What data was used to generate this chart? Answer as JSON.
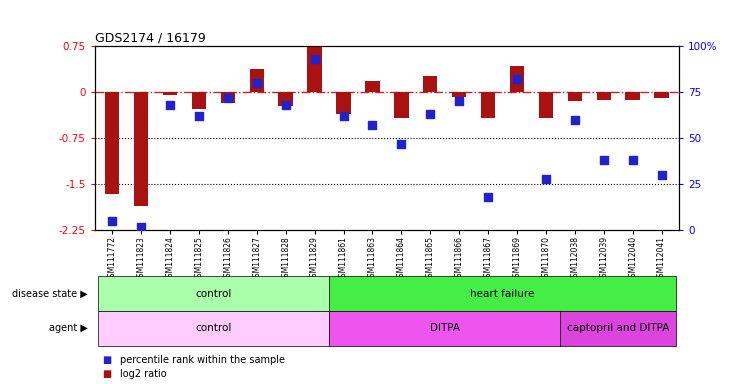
{
  "title": "GDS2174 / 16179",
  "samples": [
    "GSM111772",
    "GSM111823",
    "GSM111824",
    "GSM111825",
    "GSM111826",
    "GSM111827",
    "GSM111828",
    "GSM111829",
    "GSM111861",
    "GSM111863",
    "GSM111864",
    "GSM111865",
    "GSM111866",
    "GSM111867",
    "GSM111869",
    "GSM111870",
    "GSM112038",
    "GSM112039",
    "GSM112040",
    "GSM112041"
  ],
  "log2_ratio": [
    -1.65,
    -1.85,
    -0.05,
    -0.28,
    -0.18,
    0.38,
    -0.22,
    0.78,
    -0.35,
    0.18,
    -0.42,
    0.27,
    -0.08,
    -0.42,
    0.42,
    -0.42,
    -0.15,
    -0.12,
    -0.12,
    -0.1
  ],
  "percentile": [
    5,
    2,
    68,
    62,
    72,
    80,
    68,
    93,
    62,
    57,
    47,
    63,
    70,
    18,
    82,
    28,
    60,
    38,
    38,
    30
  ],
  "ylim_left": [
    -2.25,
    0.75
  ],
  "ylim_right": [
    0,
    100
  ],
  "yticks_left": [
    -2.25,
    -1.5,
    -0.75,
    0,
    0.75
  ],
  "yticks_right": [
    0,
    25,
    50,
    75,
    100
  ],
  "ytick_labels_right": [
    "0",
    "25",
    "50",
    "75",
    "100%"
  ],
  "disease_state_groups": [
    {
      "label": "control",
      "start": 0,
      "end": 8,
      "color": "#aaffaa"
    },
    {
      "label": "heart failure",
      "start": 8,
      "end": 20,
      "color": "#44ee44"
    }
  ],
  "agent_groups": [
    {
      "label": "control",
      "start": 0,
      "end": 8,
      "color": "#ffccff"
    },
    {
      "label": "DITPA",
      "start": 8,
      "end": 16,
      "color": "#ee55ee"
    },
    {
      "label": "captopril and DITPA",
      "start": 16,
      "end": 20,
      "color": "#dd44dd"
    }
  ],
  "bar_color": "#aa1111",
  "dot_color": "#2222cc",
  "hline_color": "#cc2222",
  "dot_size": 28,
  "bar_width": 0.5,
  "xlim": [
    -0.6,
    19.6
  ]
}
